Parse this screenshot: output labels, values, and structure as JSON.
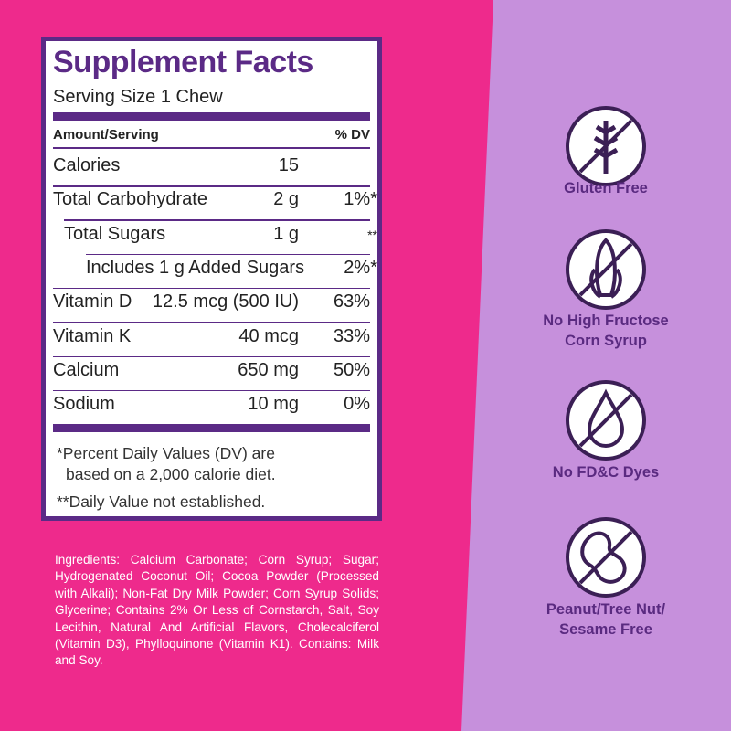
{
  "facts": {
    "title": "Supplement Facts",
    "serving_size": "Serving Size 1 Chew",
    "header": {
      "amount": "Amount/Serving",
      "dv": "% DV"
    },
    "rows": [
      {
        "label": "Calories",
        "amount": "15",
        "dv": ""
      },
      {
        "label": "Total Carbohydrate",
        "amount": "2 g",
        "dv": "1%*"
      },
      {
        "label": "Total Sugars",
        "amount": "1 g",
        "dv": "**",
        "indent": 1
      },
      {
        "label": "Includes 1 g Added Sugars",
        "amount": "",
        "dv": "2%*",
        "indent": 2
      },
      {
        "label": "Vitamin D",
        "amount": "12.5 mcg (500 IU)",
        "dv": "63%"
      },
      {
        "label": "Vitamin K",
        "amount": "40 mcg",
        "dv": "33%"
      },
      {
        "label": "Calcium",
        "amount": "650 mg",
        "dv": "50%"
      },
      {
        "label": "Sodium",
        "amount": "10 mg",
        "dv": "0%"
      }
    ],
    "footnotes": [
      "*Percent Daily Values (DV) are",
      "based on a 2,000 calorie diet.",
      "**Daily Value not established."
    ]
  },
  "ingredients": "Ingredients: Calcium Carbonate; Corn Syrup; Sugar; Hydrogenated Coconut Oil; Cocoa Powder (Processed with Alkali); Non-Fat Dry Milk Powder; Corn Syrup Solids; Glycerine; Contains 2% Or Less of Cornstarch, Salt, Soy Lecithin, Natural And Artificial Flavors, Cholecalciferol (Vitamin D3), Phylloquinone (Vitamin K1). Contains: Milk and Soy.",
  "badges": [
    {
      "lines": [
        "Gluten Free"
      ]
    },
    {
      "lines": [
        "No High Fructose",
        "Corn Syrup"
      ]
    },
    {
      "lines": [
        "No FD&C Dyes"
      ]
    },
    {
      "lines": [
        "Peanut/Tree Nut/",
        "Sesame Free"
      ]
    }
  ]
}
